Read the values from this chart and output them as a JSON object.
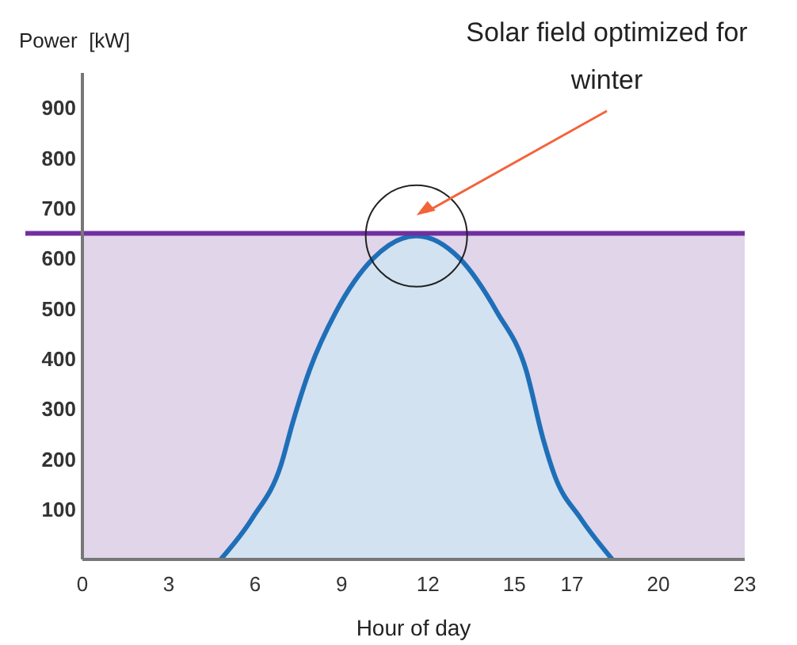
{
  "chart_data": {
    "type": "area",
    "xlabel": "Hour of day",
    "ylabel": "Power  [kW]",
    "xlim": [
      0,
      23
    ],
    "xticks": [
      0,
      3,
      6,
      9,
      12,
      15,
      17,
      20,
      23
    ],
    "ylim": [
      0,
      970
    ],
    "yticks": [
      100,
      200,
      300,
      400,
      500,
      600,
      700,
      800,
      900
    ],
    "grid": false,
    "series": [
      {
        "color": "#1f6fb8",
        "x": [
          4.8,
          5.9,
          6.9,
          7.3,
          7.9,
          8.8,
          10.1,
          11.6,
          13.1,
          14.4,
          15.4,
          16.0,
          16.4,
          17.3,
          18.4
        ],
        "values": [
          0,
          82,
          189,
          272,
          379,
          493,
          600,
          645,
          600,
          493,
          379,
          240,
          167,
          82,
          0
        ]
      }
    ],
    "ref_lines": [
      {
        "axis": "y",
        "value": 650,
        "color": "#7030a0"
      }
    ],
    "bands": [
      {
        "axis": "y",
        "from": 0,
        "to": 650,
        "color": "#e0d5e9"
      }
    ],
    "annotations": [
      "Solar field optimized for winter"
    ]
  }
}
